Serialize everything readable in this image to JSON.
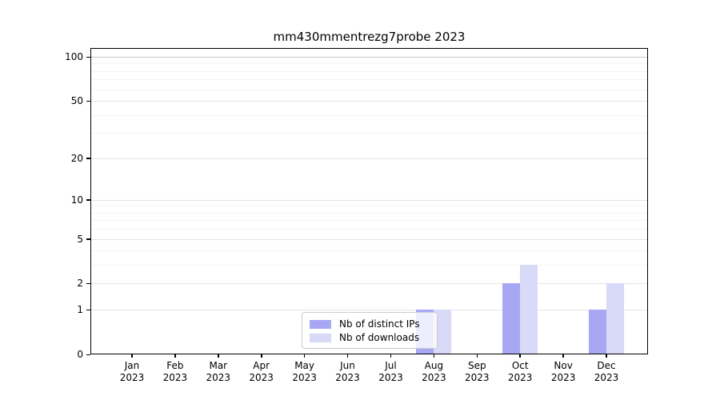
{
  "chart_data": {
    "type": "bar",
    "title": "mm430mmentrezg7probe 2023",
    "categories": [
      "Jan 2023",
      "Feb 2023",
      "Mar 2023",
      "Apr 2023",
      "May 2023",
      "Jun 2023",
      "Jul 2023",
      "Aug 2023",
      "Sep 2023",
      "Oct 2023",
      "Nov 2023",
      "Dec 2023"
    ],
    "series": [
      {
        "name": "Nb of distinct IPs",
        "color": "#a7a7f3",
        "values": [
          0,
          0,
          0,
          0,
          0,
          0,
          0,
          1,
          0,
          2,
          0,
          1
        ]
      },
      {
        "name": "Nb of downloads",
        "color": "#d9d9f8",
        "values": [
          0,
          0,
          0,
          0,
          0,
          0,
          0,
          1,
          0,
          3,
          0,
          2
        ]
      }
    ],
    "xlabel": "",
    "ylabel": "",
    "yscale": "log1p",
    "yticks": [
      0,
      1,
      2,
      5,
      10,
      20,
      50,
      100
    ],
    "minor_yticks": [
      3,
      4,
      6,
      7,
      8,
      9,
      30,
      40,
      60,
      70,
      80,
      90
    ],
    "ylim": [
      0,
      115
    ],
    "grid": "on",
    "legend_position": "inside-bottom-center"
  },
  "colors": {
    "background": "#ffffff",
    "axis": "#000000",
    "grid_major": "#e4e4e4",
    "grid_minor": "#f4f4f4",
    "grid_top": "#c8c8c8"
  }
}
